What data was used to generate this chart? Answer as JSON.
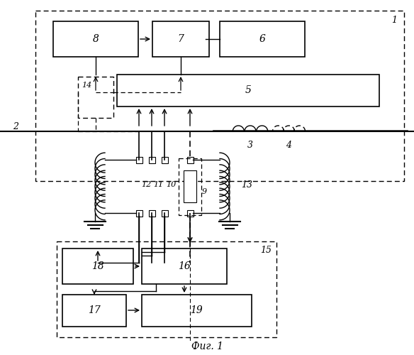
{
  "title": "Фиг. 1",
  "bg_color": "#ffffff",
  "line_color": "#000000"
}
